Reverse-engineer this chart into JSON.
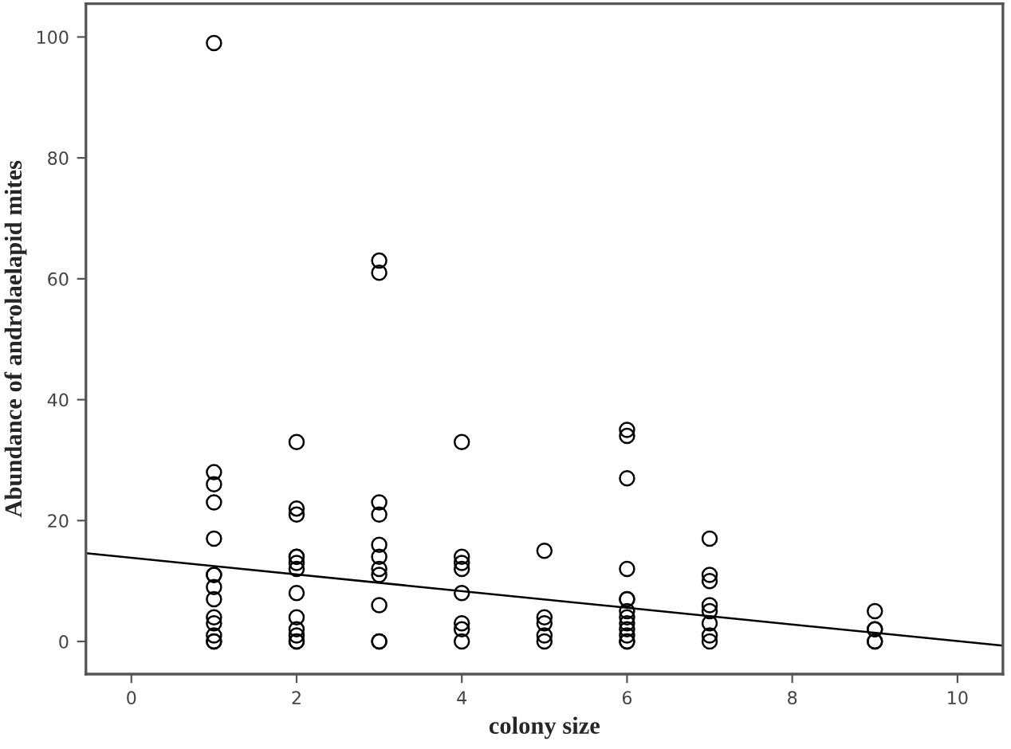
{
  "chart_data": {
    "type": "scatter",
    "xlabel": "colony size",
    "ylabel": "Abundance of androlaelapid mites",
    "xlim": [
      -0.55,
      10.55
    ],
    "ylim": [
      -5.4,
      105.5
    ],
    "xticks": [
      0,
      2,
      4,
      6,
      8,
      10
    ],
    "yticks": [
      0,
      20,
      40,
      60,
      80,
      100
    ],
    "grid": false,
    "marker": "circle",
    "series": [
      {
        "color": "#000000",
        "x": [
          1,
          1,
          1,
          1,
          1,
          1,
          1,
          1,
          1,
          1,
          1,
          1,
          1,
          1,
          2,
          2,
          2,
          2,
          2,
          2,
          2,
          2,
          2,
          2,
          2,
          2,
          2,
          3,
          3,
          3,
          3,
          3,
          3,
          3,
          3,
          3,
          3,
          3,
          4,
          4,
          4,
          4,
          4,
          4,
          4,
          4,
          5,
          5,
          5,
          5,
          5,
          6,
          6,
          6,
          6,
          6,
          6,
          6,
          6,
          6,
          6,
          6,
          6,
          6,
          7,
          7,
          7,
          7,
          7,
          7,
          7,
          7,
          9,
          9,
          9,
          9,
          9
        ],
        "values": [
          99,
          28,
          26,
          23,
          17,
          11,
          11,
          9,
          7,
          4,
          3,
          1,
          0,
          0,
          33,
          22,
          21,
          14,
          14,
          13,
          12,
          8,
          4,
          2,
          1,
          0,
          0,
          63,
          61,
          23,
          21,
          16,
          14,
          12,
          11,
          6,
          0,
          0,
          33,
          14,
          13,
          12,
          8,
          3,
          2,
          0,
          15,
          4,
          3,
          1,
          0,
          35,
          34,
          27,
          12,
          7,
          7,
          5,
          4,
          3,
          2,
          1,
          0,
          0,
          17,
          11,
          10,
          6,
          5,
          3,
          1,
          0,
          5,
          2,
          2,
          0,
          0
        ]
      },
      {
        "type": "line",
        "color": "#000000",
        "marker": "none",
        "line_style": "solid",
        "x": [
          -0.55,
          10.55
        ],
        "values": [
          14.6,
          -0.7
        ]
      }
    ]
  }
}
